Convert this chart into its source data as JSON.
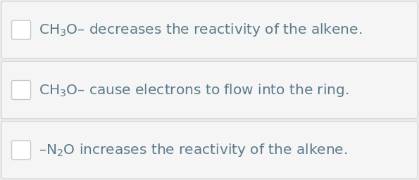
{
  "bg_color": "#ebebeb",
  "row_bg_color": "#f5f5f5",
  "row_border_color": "#d5d5d5",
  "text_color": "#5a7a8a",
  "checkbox_border_color": "#c8c8c8",
  "checkbox_fill": "#ffffff",
  "rows": [
    "CH$_3$O– decreases the reactivity of the alkene.",
    "CH$_3$O– cause electrons to flow into the ring.",
    "–N$_2$O increases the reactivity of the alkene."
  ],
  "font_size": 14.5,
  "figsize": [
    5.95,
    2.56
  ],
  "dpi": 100
}
